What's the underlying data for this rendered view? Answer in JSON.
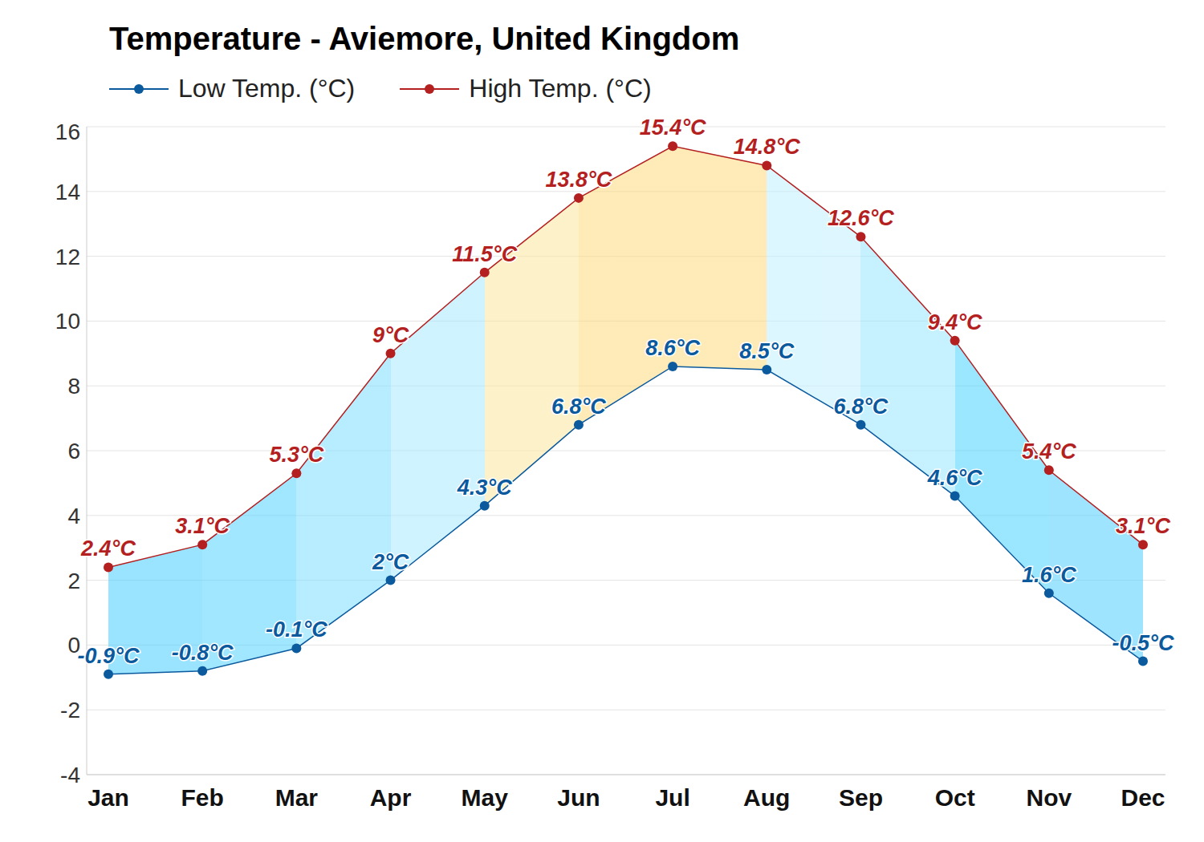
{
  "chart_data": {
    "type": "line",
    "title": "Temperature - Aviemore, United Kingdom",
    "categories": [
      "Jan",
      "Feb",
      "Mar",
      "Apr",
      "May",
      "Jun",
      "Jul",
      "Aug",
      "Sep",
      "Oct",
      "Nov",
      "Dec"
    ],
    "series": [
      {
        "name": "Low Temp. (°C)",
        "color": "#0b5a9e",
        "values": [
          -0.9,
          -0.8,
          -0.1,
          2,
          4.3,
          6.8,
          8.6,
          8.5,
          6.8,
          4.6,
          1.6,
          -0.5
        ],
        "value_labels": [
          "-0.9°C",
          "-0.8°C",
          "-0.1°C",
          "2°C",
          "4.3°C",
          "6.8°C",
          "8.6°C",
          "8.5°C",
          "6.8°C",
          "4.6°C",
          "1.6°C",
          "-0.5°C"
        ]
      },
      {
        "name": "High Temp. (°C)",
        "color": "#b41f1f",
        "values": [
          2.4,
          3.1,
          5.3,
          9,
          11.5,
          13.8,
          15.4,
          14.8,
          12.6,
          9.4,
          5.4,
          3.1
        ],
        "value_labels": [
          "2.4°C",
          "3.1°C",
          "5.3°C",
          "9°C",
          "11.5°C",
          "13.8°C",
          "15.4°C",
          "14.8°C",
          "12.6°C",
          "9.4°C",
          "5.4°C",
          "3.1°C"
        ]
      }
    ],
    "ylim": [
      -4,
      16
    ],
    "yticks": [
      -4,
      -2,
      0,
      2,
      4,
      6,
      8,
      10,
      12,
      14,
      16
    ],
    "grid": true,
    "legend": "top-left",
    "data_labels": true,
    "marker": "circle"
  }
}
